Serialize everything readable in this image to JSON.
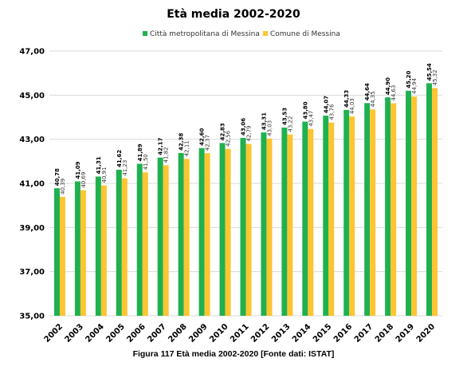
{
  "chart_data": {
    "type": "bar",
    "title": "Età media 2002-2020",
    "xlabel": "",
    "ylabel": "",
    "ylim": [
      35,
      47
    ],
    "yticks": [
      "35,00",
      "37,00",
      "39,00",
      "41,00",
      "43,00",
      "45,00",
      "47,00"
    ],
    "categories": [
      "2002",
      "2003",
      "2004",
      "2005",
      "2006",
      "2007",
      "2008",
      "2009",
      "2010",
      "2011",
      "2012",
      "2013",
      "2014",
      "2015",
      "2016",
      "2017",
      "2018",
      "2019",
      "2020"
    ],
    "series": [
      {
        "name": "Città metropolitana di Messina",
        "color": "#1fb14f",
        "values": [
          40.78,
          41.09,
          41.31,
          41.62,
          41.89,
          42.17,
          42.38,
          42.6,
          42.83,
          43.06,
          43.31,
          43.53,
          43.8,
          44.07,
          44.33,
          44.64,
          44.9,
          45.2,
          45.54
        ],
        "labels": [
          "40,78",
          "41,09",
          "41,31",
          "41,62",
          "41,89",
          "42,17",
          "42,38",
          "42,60",
          "42,83",
          "43,06",
          "43,31",
          "43,53",
          "43,80",
          "44,07",
          "44,33",
          "44,64",
          "44,90",
          "45,20",
          "45,54"
        ]
      },
      {
        "name": "Comune di Messina",
        "color": "#fcc531",
        "values": [
          40.39,
          40.69,
          40.91,
          41.23,
          41.5,
          41.82,
          42.11,
          42.37,
          42.56,
          42.79,
          43.03,
          43.22,
          43.47,
          43.76,
          44.03,
          44.35,
          44.63,
          44.94,
          45.32
        ],
        "labels": [
          "40,39",
          "40,69",
          "40,91",
          "41,23",
          "41,50",
          "41,82",
          "42,11",
          "42,37",
          "42,56",
          "42,79",
          "43,03",
          "43,22",
          "43,47",
          "43,76",
          "44,03",
          "44,35",
          "44,63",
          "44,94",
          "45,32"
        ]
      }
    ],
    "grid": true,
    "legend_position": "top"
  },
  "caption": "Figura 117 Età media 2002-2020 [Fonte dati: ISTAT]"
}
